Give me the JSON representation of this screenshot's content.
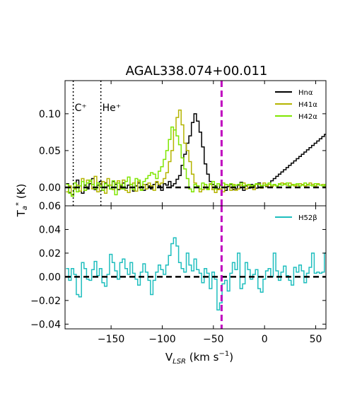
{
  "title": "AGAL338.074+00.011",
  "ylabel": "T_a* (K)",
  "xlabel": "V_LSR (km s^-1)",
  "chart_data": [
    {
      "type": "line",
      "panel": "top",
      "xlim": [
        -195,
        60
      ],
      "ylim": [
        -0.025,
        0.145
      ],
      "xticks": [
        -150,
        -100,
        -50,
        0,
        50
      ],
      "yticks": [
        0.0,
        0.05,
        0.1
      ],
      "ytick_labels": [
        "0.00",
        "0.05",
        "0.10"
      ],
      "legend_position": "top-right",
      "vlines": [
        {
          "x": -42,
          "style": "dashed",
          "color": "#bf00bf"
        },
        {
          "x": -187,
          "style": "dotted",
          "color": "#000000",
          "label": "C⁺"
        },
        {
          "x": -160,
          "style": "dotted",
          "color": "#000000",
          "label": "He⁺"
        }
      ],
      "hline": {
        "y": 0,
        "style": "dashed",
        "color": "#000000"
      },
      "x_start": -194,
      "x_step": 2.5,
      "series": [
        {
          "name": "Hnα",
          "color": "#000000",
          "values": [
            0.005,
            -0.007,
            -0.01,
            -0.002,
            0.01,
            -0.005,
            -0.008,
            0.003,
            -0.002,
            0.005,
            0.012,
            -0.003,
            0.003,
            0.008,
            -0.004,
            0.006,
            0.002,
            -0.002,
            0.008,
            0.004,
            -0.003,
            0.002,
            0.006,
            -0.001,
            0.003,
            0.004,
            -0.005,
            0.002,
            0.006,
            0.001,
            -0.004,
            0.004,
            0.002,
            -0.002,
            0.004,
            0.007,
            0.002,
            -0.004,
            0.005,
            0.003,
            0.008,
            0.002,
            0.005,
            0.011,
            0.016,
            0.03,
            0.045,
            0.06,
            0.07,
            0.088,
            0.1,
            0.09,
            0.075,
            0.055,
            0.032,
            0.018,
            0.008,
            0.004,
            0.002,
            -0.002,
            0.003,
            0.006,
            -0.004,
            0.001,
            0.004,
            -0.003,
            -0.002,
            0.003,
            0.007,
            -0.004,
            0.002,
            -0.001,
            0.004,
            0.002,
            -0.001,
            0.006,
            0.002,
            0.003,
            0.001,
            0.006,
            0.009,
            0.012,
            0.015,
            0.018,
            0.021,
            0.024,
            0.027,
            0.03,
            0.033,
            0.036,
            0.039,
            0.042,
            0.045,
            0.048,
            0.051,
            0.054,
            0.057,
            0.06,
            0.063,
            0.066,
            0.069,
            0.072
          ]
        },
        {
          "name": "H41α",
          "color": "#b4b400",
          "values": [
            -0.006,
            0.002,
            -0.01,
            -0.002,
            0.003,
            -0.005,
            0.012,
            -0.004,
            0.01,
            0.008,
            -0.002,
            0.015,
            -0.006,
            0.004,
            0.008,
            -0.008,
            0.012,
            0.003,
            -0.003,
            0.006,
            0.009,
            -0.002,
            0.01,
            -0.004,
            -0.007,
            0.004,
            0.006,
            -0.005,
            0.008,
            -0.003,
            0.004,
            -0.002,
            0.006,
            0.002,
            -0.004,
            0.008,
            0.004,
            0.006,
            0.012,
            0.02,
            0.035,
            0.05,
            0.078,
            0.095,
            0.105,
            0.085,
            0.06,
            0.05,
            0.035,
            0.018,
            0.006,
            0.002,
            -0.006,
            -0.003,
            0.004,
            -0.002,
            0.005,
            -0.003,
            -0.007,
            -0.003,
            -0.002,
            -0.006,
            0.004,
            0.003,
            -0.004,
            0.004,
            -0.004,
            -0.002,
            0.003,
            0.006,
            -0.002,
            0.003,
            0.001,
            -0.003,
            0.004,
            0.005,
            -0.001,
            0.006,
            0.002,
            0.004,
            0.001,
            0.003,
            0.002,
            0.004,
            0.006,
            0.005,
            0.003,
            0.006,
            0.004,
            0.002,
            0.003,
            0.005,
            0.004,
            0.002,
            0.003,
            0.006,
            0.004,
            0.002,
            0.005,
            0.003,
            0.004,
            0.002
          ]
        },
        {
          "name": "H42α",
          "color": "#7fe600",
          "values": [
            0.004,
            -0.008,
            -0.012,
            0.006,
            -0.006,
            0.002,
            0.008,
            -0.004,
            0.006,
            0.01,
            0.004,
            -0.002,
            0.006,
            0.002,
            -0.004,
            0.005,
            0.003,
            -0.002,
            0.009,
            -0.01,
            0.006,
            0.004,
            -0.002,
            0.008,
            0.014,
            0.004,
            -0.003,
            0.012,
            0.01,
            -0.004,
            0.008,
            0.012,
            0.016,
            0.02,
            0.018,
            0.012,
            0.022,
            0.028,
            0.038,
            0.05,
            0.065,
            0.082,
            0.078,
            0.07,
            0.058,
            0.04,
            0.025,
            0.012,
            -0.002,
            -0.006,
            0.004,
            0.002,
            -0.002,
            0.006,
            0.004,
            -0.003,
            0.004,
            0.008,
            -0.002,
            0.005,
            0.002,
            0.006,
            0.004,
            0.003,
            0.005,
            0.002,
            0.003,
            0.004,
            0.006,
            0.002,
            0.003,
            0.004,
            0.002,
            0.003,
            0.005,
            0.004,
            0.002,
            0.003,
            0.004,
            0.006,
            0.003,
            0.004,
            0.002,
            0.005,
            0.003,
            0.004,
            0.006,
            0.002,
            0.003,
            0.004,
            0.005,
            0.002,
            0.003,
            0.006,
            0.004,
            0.003,
            0.002,
            0.005,
            0.004,
            0.003,
            0.002,
            0.004
          ]
        }
      ]
    },
    {
      "type": "line",
      "panel": "bottom",
      "xlim": [
        -195,
        60
      ],
      "ylim": [
        -0.044,
        0.06
      ],
      "xticks": [
        -150,
        -100,
        -50,
        0,
        50
      ],
      "yticks": [
        -0.04,
        -0.02,
        0.0,
        0.02,
        0.04,
        0.06
      ],
      "ytick_labels": [
        "−0.04",
        "−0.02",
        "0.00",
        "0.02",
        "0.04",
        "0.06"
      ],
      "xtick_labels": [
        "−150",
        "−100",
        "−50",
        "0",
        "50"
      ],
      "legend_position": "top-right",
      "vlines": [
        {
          "x": -42,
          "style": "dashed",
          "color": "#bf00bf"
        }
      ],
      "hline": {
        "y": 0,
        "style": "dashed",
        "color": "#000000"
      },
      "x_start": -194,
      "x_step": 2.5,
      "series": [
        {
          "name": "H52β",
          "color": "#1ebebe",
          "values": [
            0.007,
            -0.003,
            0.007,
            0.002,
            -0.015,
            -0.017,
            0.012,
            0.007,
            -0.002,
            -0.003,
            0.006,
            0.013,
            0.001,
            0.007,
            -0.005,
            -0.008,
            0.002,
            0.019,
            0.012,
            0.005,
            -0.002,
            0.012,
            0.015,
            0.007,
            0.002,
            0.012,
            0.003,
            -0.002,
            -0.007,
            0.004,
            0.011,
            0.004,
            -0.003,
            -0.015,
            -0.003,
            0.004,
            0.01,
            0.006,
            0.002,
            0.01,
            0.018,
            0.028,
            0.033,
            0.026,
            0.012,
            0.007,
            0.004,
            0.02,
            0.01,
            0.005,
            0.015,
            0.006,
            0.003,
            -0.005,
            0.007,
            0.003,
            -0.01,
            0.004,
            -0.002,
            -0.028,
            -0.022,
            -0.006,
            -0.003,
            -0.012,
            0.003,
            0.012,
            0.006,
            0.02,
            -0.01,
            -0.006,
            0.012,
            0.006,
            -0.002,
            0.002,
            0.006,
            -0.01,
            -0.013,
            -0.002,
            0.005,
            0.007,
            0.0,
            0.02,
            0.005,
            -0.003,
            0.004,
            0.009,
            0.001,
            -0.003,
            -0.007,
            0.008,
            0.004,
            0.01,
            0.005,
            -0.005,
            0.003,
            0.008,
            0.02,
            0.003,
            0.004,
            0.003,
            0.004,
            0.02
          ]
        }
      ]
    }
  ]
}
